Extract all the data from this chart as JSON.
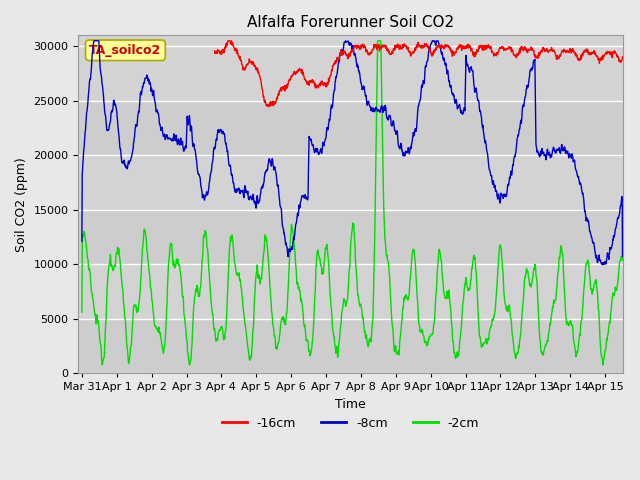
{
  "title": "Alfalfa Forerunner Soil CO2",
  "xlabel": "Time",
  "ylabel": "Soil CO2 (ppm)",
  "ylim": [
    0,
    31000
  ],
  "yticks": [
    0,
    5000,
    10000,
    15000,
    20000,
    25000,
    30000
  ],
  "legend_label": "TA_soilco2",
  "line_labels": [
    "-16cm",
    "-8cm",
    "-2cm"
  ],
  "line_colors": [
    "#ff0000",
    "#0000cc",
    "#00dd00"
  ],
  "background_color": "#e8e8e8",
  "plot_bg_color": "#d3d3d3",
  "title_fontsize": 11,
  "axis_fontsize": 9,
  "tick_fontsize": 8,
  "n_points": 1500,
  "t_start": 0.0,
  "t_end": 15.5,
  "xticklabels": [
    "Mar 31",
    "Apr 1",
    "Apr 2",
    "Apr 3",
    "Apr 4",
    "Apr 5",
    "Apr 6",
    "Apr 7",
    "Apr 8",
    "Apr 9",
    "Apr 10",
    "Apr 11",
    "Apr 12",
    "Apr 13",
    "Apr 14",
    "Apr 15"
  ],
  "xtick_positions": [
    0,
    1,
    2,
    3,
    4,
    5,
    6,
    7,
    8,
    9,
    10,
    11,
    12,
    13,
    14,
    15
  ],
  "xlim": [
    -0.1,
    15.5
  ]
}
